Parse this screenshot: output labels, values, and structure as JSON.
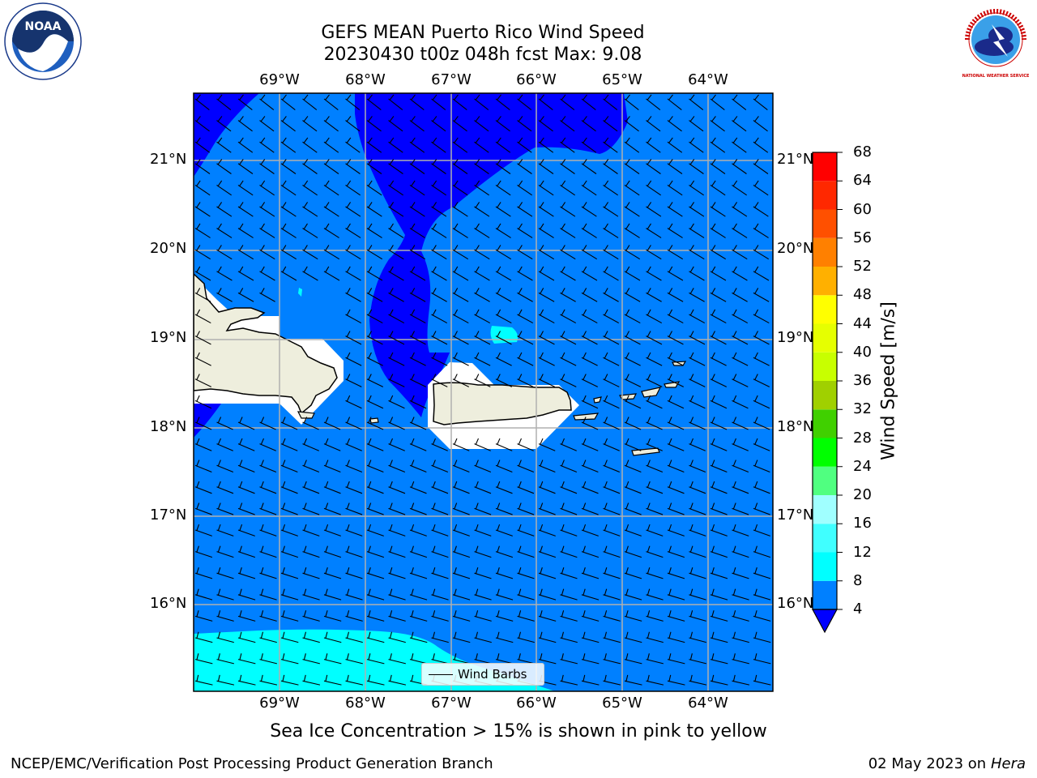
{
  "title_line1": "GEFS MEAN Puerto Rico Wind Speed",
  "title_line2": "20230430 t00z 048h fcst   Max: 9.08",
  "lon_labels": [
    "69°W",
    "68°W",
    "67°W",
    "66°W",
    "65°W",
    "64°W"
  ],
  "lat_labels": [
    "21°N",
    "20°N",
    "19°N",
    "18°N",
    "17°N",
    "16°N"
  ],
  "colorbar": {
    "label": "Wind Speed [m/s]",
    "ticks": [
      "68",
      "64",
      "60",
      "56",
      "52",
      "48",
      "44",
      "40",
      "36",
      "32",
      "28",
      "24",
      "20",
      "16",
      "12",
      "8",
      "4"
    ],
    "colors": [
      "#0000ff",
      "#0080ff",
      "#00ffff",
      "#40ffff",
      "#a0ffff",
      "#50ff80",
      "#00ff00",
      "#40d000",
      "#a0d000",
      "#c8ff00",
      "#e6ff00",
      "#ffff00",
      "#ffb000",
      "#ff8000",
      "#ff5000",
      "#ff2800",
      "#ff0000"
    ]
  },
  "legend": {
    "label": "Wind Barbs"
  },
  "subtitle": "Sea Ice Concentration > 15% is shown in pink to yellow",
  "footer": {
    "left": "NCEP/EMC/Verification Post Processing Product Generation Branch",
    "date": "02 May 2023 on",
    "machine": "Hera"
  },
  "logos": {
    "noaa_text": "NOAA",
    "nws_text": "NATIONAL WEATHER SERVICE"
  },
  "map_colors": {
    "ocean": "#0080ff",
    "low": "#0000ff",
    "high": "#00ffff",
    "land": "#eeeedd"
  }
}
